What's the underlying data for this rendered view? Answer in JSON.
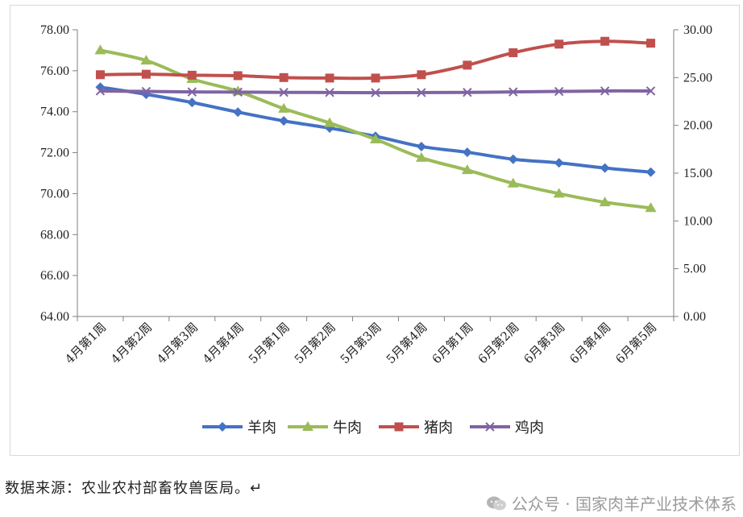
{
  "chart_data": {
    "type": "line",
    "title": "",
    "xlabel": "",
    "ylabel": "",
    "categories": [
      "4月第1周",
      "4月第2周",
      "4月第3周",
      "4月第4周",
      "5月第1周",
      "5月第2周",
      "5月第3周",
      "5月第4周",
      "6月第1周",
      "6月第2周",
      "6月第3周",
      "6月第4周",
      "6月第5周"
    ],
    "left_axis": {
      "ylim": [
        64,
        78
      ],
      "step": 2,
      "ticks": [
        "64.00",
        "66.00",
        "68.00",
        "70.00",
        "72.00",
        "74.00",
        "76.00",
        "78.00"
      ]
    },
    "right_axis": {
      "ylim": [
        0,
        30
      ],
      "step": 5,
      "ticks": [
        "0.00",
        "5.00",
        "10.00",
        "15.00",
        "20.00",
        "25.00",
        "30.00"
      ]
    },
    "series": [
      {
        "name": "羊肉",
        "axis": "left",
        "color": "#4472C4",
        "marker": "diamond",
        "values": [
          75.2,
          74.85,
          74.45,
          73.98,
          73.55,
          73.2,
          72.8,
          72.3,
          72.02,
          71.68,
          71.5,
          71.25,
          71.05
        ]
      },
      {
        "name": "牛肉",
        "axis": "left",
        "color": "#9BBB59",
        "marker": "triangle",
        "values": [
          77.0,
          76.5,
          75.6,
          75.0,
          74.15,
          73.45,
          72.65,
          71.75,
          71.15,
          70.5,
          70.0,
          69.58,
          69.3
        ]
      },
      {
        "name": "猪肉",
        "axis": "right",
        "color": "#C0504D",
        "marker": "square",
        "values": [
          25.3,
          25.35,
          25.25,
          25.2,
          25.0,
          24.95,
          24.95,
          25.3,
          26.3,
          27.6,
          28.5,
          28.8,
          28.6
        ]
      },
      {
        "name": "鸡肉",
        "axis": "right",
        "color": "#8064A2",
        "marker": "x",
        "values": [
          23.6,
          23.55,
          23.5,
          23.48,
          23.45,
          23.44,
          23.42,
          23.43,
          23.45,
          23.5,
          23.55,
          23.6,
          23.6
        ]
      }
    ],
    "legend_position": "bottom",
    "grid": false
  },
  "footer": {
    "source_note": "数据来源：农业农村部畜牧兽医局。↵",
    "watermark": "公众号 · 国家肉羊产业技术体系",
    "watermark_icon": "wechat-icon"
  }
}
